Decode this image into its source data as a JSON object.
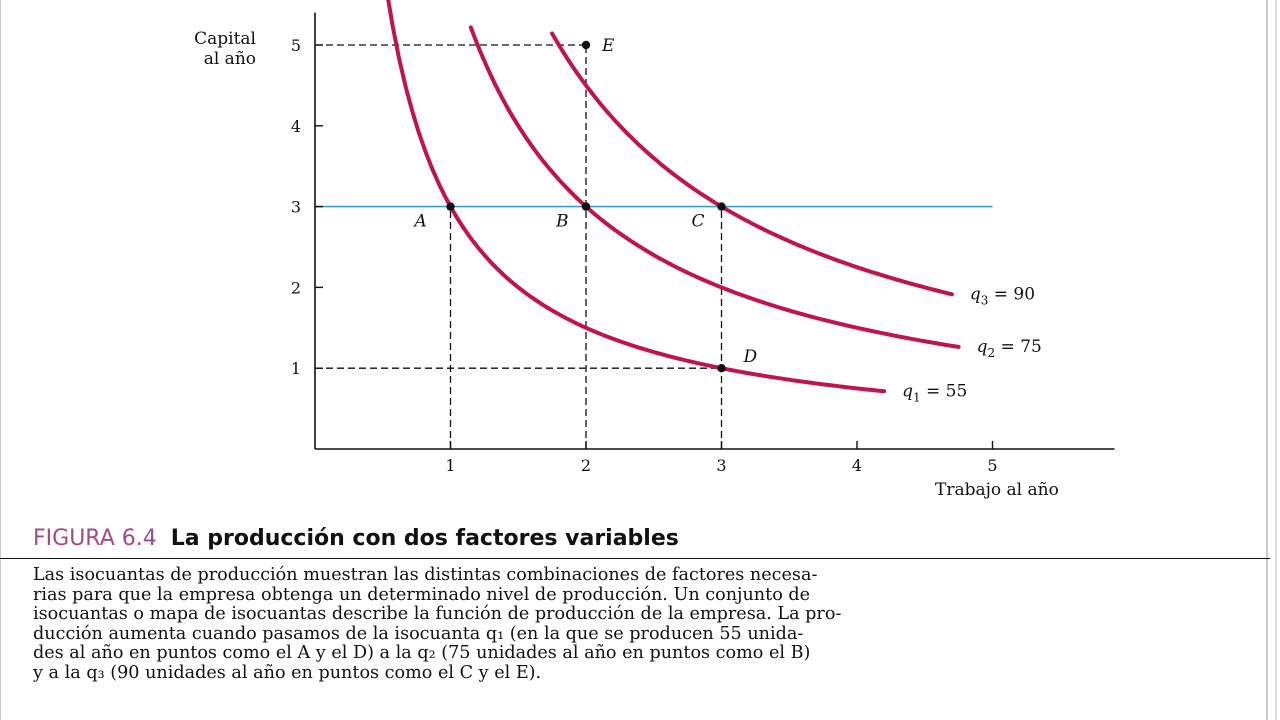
{
  "chart_data": {
    "type": "line",
    "title": "",
    "xlabel": "Trabajo al año",
    "ylabel_lines": [
      "Capital",
      "al año"
    ],
    "xlim": [
      0,
      5.9
    ],
    "ylim": [
      0,
      5.4
    ],
    "x_ticks": [
      1,
      2,
      3,
      4,
      5
    ],
    "y_ticks": [
      1,
      2,
      3,
      4,
      5
    ],
    "grid": false,
    "series": [
      {
        "name": "q₁ = 55",
        "label_main": "q",
        "label_sub": "1",
        "label_rest": " = 55",
        "k": 3,
        "x_start": 0.33,
        "x_end": 4.2,
        "color": "#c0144f"
      },
      {
        "name": "q₂ = 75",
        "label_main": "q",
        "label_sub": "2",
        "label_rest": " = 75",
        "k": 6,
        "x_start": 1.15,
        "x_end": 4.75,
        "color": "#c0144f"
      },
      {
        "name": "q₃ = 90",
        "label_main": "q",
        "label_sub": "3",
        "label_rest": " = 90",
        "k": 9,
        "x_start": 1.75,
        "x_end": 4.7,
        "color": "#c0144f"
      }
    ],
    "points": [
      {
        "label": "A",
        "x": 1,
        "y": 3
      },
      {
        "label": "B",
        "x": 2,
        "y": 3
      },
      {
        "label": "C",
        "x": 3,
        "y": 3
      },
      {
        "label": "D",
        "x": 3,
        "y": 1
      },
      {
        "label": "E",
        "x": 2,
        "y": 5
      }
    ],
    "horizontal_line": {
      "y": 3,
      "x_end": 5,
      "color": "#3aa0c8"
    },
    "dashed_guides": [
      {
        "from": [
          0,
          5
        ],
        "to": [
          2,
          5
        ]
      },
      {
        "from": [
          2,
          0
        ],
        "to": [
          2,
          5
        ]
      },
      {
        "from": [
          0,
          1
        ],
        "to": [
          3,
          1
        ]
      },
      {
        "from": [
          1,
          0
        ],
        "to": [
          1,
          3
        ]
      },
      {
        "from": [
          3,
          0
        ],
        "to": [
          3,
          3
        ]
      }
    ]
  },
  "caption": {
    "figure_number": "FIGURA 6.4",
    "title": "La producción con dos factores variables",
    "lines": [
      "Las isocuantas de producción muestran las distintas combinaciones de factores necesa-",
      "rias para que la empresa obtenga un determinado nivel de producción. Un conjunto de",
      "isocuantas o mapa de isocuantas describe la función de producción de la empresa. La pro-",
      "ducción aumenta cuando pasamos de la isocuanta q₁ (en la que se producen 55 unida-",
      "des al año en puntos como el A y el D) a la q₂ (75 unidades al año en puntos como el B)",
      "y a la q₃ (90 unidades al año en puntos como el C y el E)."
    ]
  }
}
